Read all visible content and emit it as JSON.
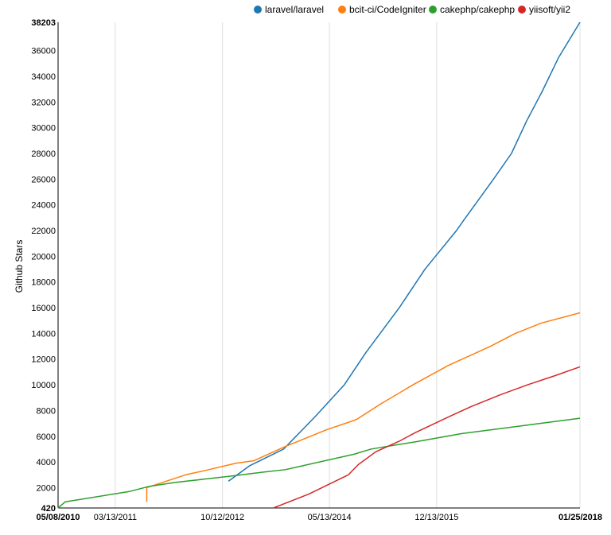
{
  "chart_data": {
    "type": "line",
    "title": "",
    "xlabel": "",
    "ylabel": "Github Stars",
    "y_ticks": [
      38203,
      36000,
      34000,
      32000,
      30000,
      28000,
      26000,
      24000,
      22000,
      20000,
      18000,
      16000,
      14000,
      12000,
      10000,
      8000,
      6000,
      4000,
      2000,
      420
    ],
    "x_ticks": [
      "05/08/2010",
      "03/13/2011",
      "10/12/2012",
      "05/13/2014",
      "12/13/2015",
      "01/25/2018"
    ],
    "x_ticks_bold": [
      "05/08/2010",
      "01/25/2018"
    ],
    "xlim": [
      "05/08/2010",
      "01/25/2018"
    ],
    "ylim": [
      420,
      38203
    ],
    "grid": {
      "vertical": true,
      "horizontal": false
    },
    "legend_position": "top-right",
    "series": [
      {
        "name": "laravel/laravel",
        "color": "#1f77b4",
        "points": [
          [
            "11/13/2012",
            2500
          ],
          [
            "03/07/2013",
            3700
          ],
          [
            "09/07/2013",
            5000
          ],
          [
            "02/23/2014",
            7500
          ],
          [
            "08/01/2014",
            10000
          ],
          [
            "11/25/2014",
            12500
          ],
          [
            "05/25/2015",
            16000
          ],
          [
            "10/11/2015",
            19000
          ],
          [
            "03/29/2016",
            22000
          ],
          [
            "05/07/2016",
            22800
          ],
          [
            "10/15/2016",
            26000
          ],
          [
            "01/20/2017",
            28000
          ],
          [
            "04/11/2017",
            30500
          ],
          [
            "07/04/2017",
            32800
          ],
          [
            "10/03/2017",
            35500
          ],
          [
            "01/25/2018",
            38203
          ]
        ]
      },
      {
        "name": "bcit-ci/CodeIgniter",
        "color": "#ff7f0e",
        "points": [
          [
            "08/30/2011",
            900
          ],
          [
            "08/30/2011",
            2000
          ],
          [
            "03/27/2012",
            3000
          ],
          [
            "06/30/2012",
            3300
          ],
          [
            "12/23/2012",
            3900
          ],
          [
            "04/01/2013",
            4100
          ],
          [
            "09/16/2013",
            5200
          ],
          [
            "04/26/2014",
            6500
          ],
          [
            "10/06/2014",
            7300
          ],
          [
            "02/12/2015",
            8500
          ],
          [
            "08/07/2015",
            10000
          ],
          [
            "02/13/2016",
            11500
          ],
          [
            "09/29/2016",
            13000
          ],
          [
            "02/10/2017",
            14000
          ],
          [
            "06/30/2017",
            14800
          ],
          [
            "01/25/2018",
            15600
          ]
        ]
      },
      {
        "name": "cakephp/cakephp",
        "color": "#2ca02c",
        "points": [
          [
            "05/08/2010",
            420
          ],
          [
            "06/16/2010",
            900
          ],
          [
            "05/28/2011",
            1700
          ],
          [
            "09/12/2011",
            2100
          ],
          [
            "01/26/2012",
            2400
          ],
          [
            "11/29/2012",
            2900
          ],
          [
            "05/16/2013",
            3200
          ],
          [
            "09/16/2013",
            3400
          ],
          [
            "09/23/2014",
            4600
          ],
          [
            "12/23/2014",
            5000
          ],
          [
            "09/03/2015",
            5600
          ],
          [
            "04/24/2016",
            6200
          ],
          [
            "06/24/2017",
            7000
          ],
          [
            "01/25/2018",
            7400
          ]
        ]
      },
      {
        "name": "yiisoft/yii2",
        "color": "#d62728",
        "points": [
          [
            "07/14/2013",
            420
          ],
          [
            "01/21/2014",
            1500
          ],
          [
            "08/23/2014",
            3000
          ],
          [
            "10/16/2014",
            3800
          ],
          [
            "01/19/2015",
            4800
          ],
          [
            "05/23/2015",
            5600
          ],
          [
            "08/22/2015",
            6300
          ],
          [
            "02/29/2016",
            7600
          ],
          [
            "06/15/2016",
            8300
          ],
          [
            "11/16/2016",
            9200
          ],
          [
            "04/17/2017",
            10000
          ],
          [
            "09/10/2017",
            10700
          ],
          [
            "01/25/2018",
            11400
          ]
        ]
      }
    ]
  }
}
